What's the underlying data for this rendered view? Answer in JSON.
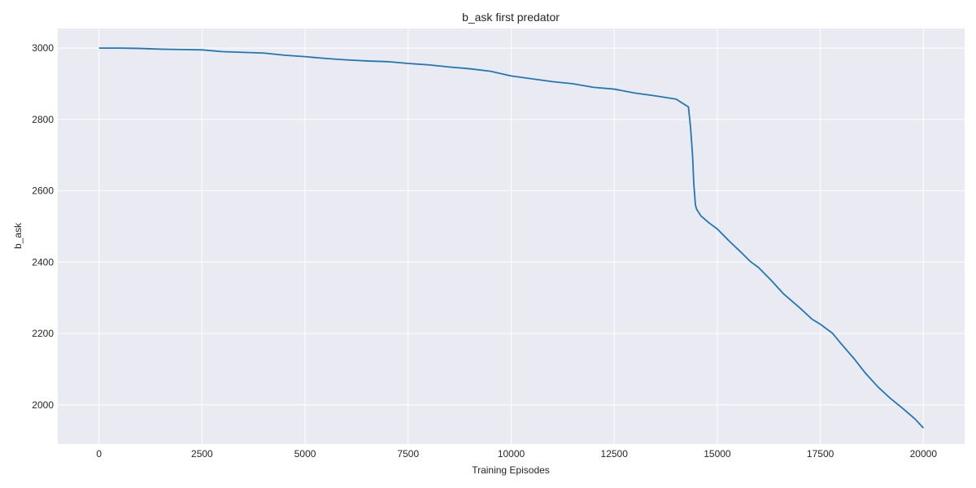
{
  "chart_data": {
    "type": "line",
    "title": "b_ask first predator",
    "xlabel": "Training Episodes",
    "ylabel": "b_ask",
    "xlim": [
      -1000,
      21000
    ],
    "ylim": [
      1890,
      3055
    ],
    "xticks": [
      0,
      2500,
      5000,
      7500,
      10000,
      12500,
      15000,
      17500,
      20000
    ],
    "yticks": [
      2000,
      2200,
      2400,
      2600,
      2800,
      3000
    ],
    "grid": true,
    "legend": false,
    "colors": {
      "line": "#1f77b4",
      "plot_background": "#eaeaf2",
      "grid": "#ffffff",
      "text": "#262626"
    },
    "series": [
      {
        "x": [
          0,
          500,
          1000,
          1500,
          2000,
          2500,
          3000,
          3500,
          4000,
          4500,
          5000,
          5500,
          6000,
          6500,
          7000,
          7500,
          8000,
          8500,
          9000,
          9500,
          10000,
          10500,
          11000,
          11500,
          12000,
          12500,
          13000,
          13500,
          14000,
          14300,
          14350,
          14400,
          14430,
          14470,
          14500,
          14600,
          14800,
          15000,
          15300,
          15600,
          15800,
          16000,
          16300,
          16600,
          17000,
          17300,
          17500,
          17800,
          18000,
          18300,
          18600,
          18900,
          19200,
          19500,
          19800,
          20000
        ],
        "y": [
          3000,
          3000,
          2999,
          2997,
          2996,
          2995,
          2990,
          2988,
          2986,
          2980,
          2976,
          2971,
          2967,
          2964,
          2962,
          2957,
          2953,
          2947,
          2942,
          2935,
          2922,
          2914,
          2906,
          2900,
          2890,
          2885,
          2874,
          2866,
          2857,
          2835,
          2780,
          2700,
          2620,
          2560,
          2548,
          2530,
          2510,
          2493,
          2458,
          2425,
          2402,
          2385,
          2350,
          2312,
          2272,
          2240,
          2226,
          2200,
          2172,
          2132,
          2088,
          2050,
          2018,
          1990,
          1960,
          1935
        ]
      }
    ]
  }
}
